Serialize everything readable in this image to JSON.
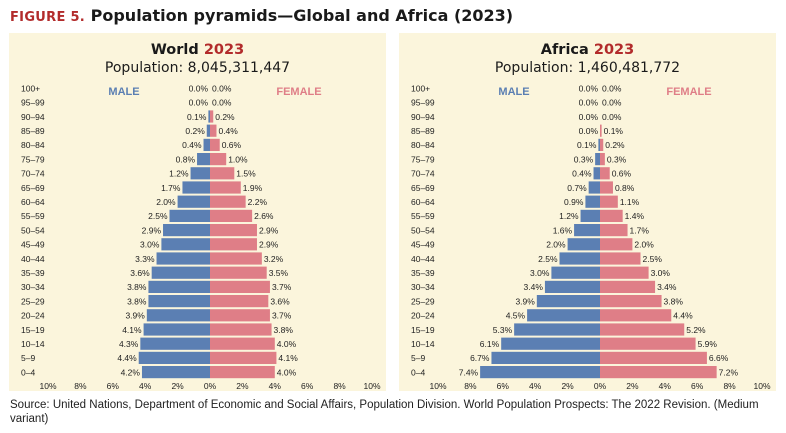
{
  "figure": {
    "label": "FIGURE 5.",
    "title": "Population pyramids—Global and Africa (2023)"
  },
  "colors": {
    "male": "#5b7fb3",
    "female": "#df7e87",
    "accent": "#b22b2b",
    "panel_bg": "#fbf5dc"
  },
  "chart_data": [
    {
      "type": "bar",
      "orientation": "horizontal-pyramid",
      "name": "World",
      "year": "2023",
      "subtitle": "Population: 8,045,311,447",
      "male_label": "MALE",
      "female_label": "FEMALE",
      "categories": [
        "100+",
        "95–99",
        "90–94",
        "85–89",
        "80–84",
        "75–79",
        "70–74",
        "65–69",
        "60–64",
        "55–59",
        "50–54",
        "45–49",
        "40–44",
        "35–39",
        "30–34",
        "25–29",
        "20–24",
        "15–19",
        "10–14",
        "5–9",
        "0–4"
      ],
      "series": [
        {
          "name": "MALE",
          "values": [
            0.0,
            0.0,
            0.1,
            0.2,
            0.4,
            0.8,
            1.2,
            1.7,
            2.0,
            2.5,
            2.9,
            3.0,
            3.3,
            3.6,
            3.8,
            3.8,
            3.9,
            4.1,
            4.3,
            4.4,
            4.2
          ]
        },
        {
          "name": "FEMALE",
          "values": [
            0.0,
            0.0,
            0.2,
            0.4,
            0.6,
            1.0,
            1.5,
            1.9,
            2.2,
            2.6,
            2.9,
            2.9,
            3.2,
            3.5,
            3.7,
            3.6,
            3.7,
            3.8,
            4.0,
            4.1,
            4.0
          ]
        }
      ],
      "xlim": [
        -10,
        10
      ],
      "xticks": [
        "10%",
        "8%",
        "6%",
        "4%",
        "2%",
        "0%",
        "2%",
        "4%",
        "6%",
        "8%",
        "10%"
      ]
    },
    {
      "type": "bar",
      "orientation": "horizontal-pyramid",
      "name": "Africa",
      "year": "2023",
      "subtitle": "Population: 1,460,481,772",
      "male_label": "MALE",
      "female_label": "FEMALE",
      "categories": [
        "100+",
        "95–99",
        "90–94",
        "85–89",
        "80–84",
        "75–79",
        "70–74",
        "65–69",
        "60–64",
        "55–59",
        "50–54",
        "45–49",
        "40–44",
        "35–39",
        "30–34",
        "25–29",
        "20–24",
        "15–19",
        "10–14",
        "5–9",
        "0–4"
      ],
      "series": [
        {
          "name": "MALE",
          "values": [
            0.0,
            0.0,
            0.0,
            0.0,
            0.1,
            0.3,
            0.4,
            0.7,
            0.9,
            1.2,
            1.6,
            2.0,
            2.5,
            3.0,
            3.4,
            3.9,
            4.5,
            5.3,
            6.1,
            6.7,
            7.4
          ]
        },
        {
          "name": "FEMALE",
          "values": [
            0.0,
            0.0,
            0.0,
            0.1,
            0.2,
            0.3,
            0.6,
            0.8,
            1.1,
            1.4,
            1.7,
            2.0,
            2.5,
            3.0,
            3.4,
            3.8,
            4.4,
            5.2,
            5.9,
            6.6,
            7.2
          ]
        }
      ],
      "xlim": [
        -10,
        10
      ],
      "xticks": [
        "10%",
        "8%",
        "6%",
        "4%",
        "2%",
        "0%",
        "2%",
        "4%",
        "6%",
        "8%",
        "10%"
      ]
    }
  ],
  "source": "Source: United Nations, Department of Economic and Social Affairs, Population Division. World Population Prospects: The 2022 Revision. (Medium variant)"
}
